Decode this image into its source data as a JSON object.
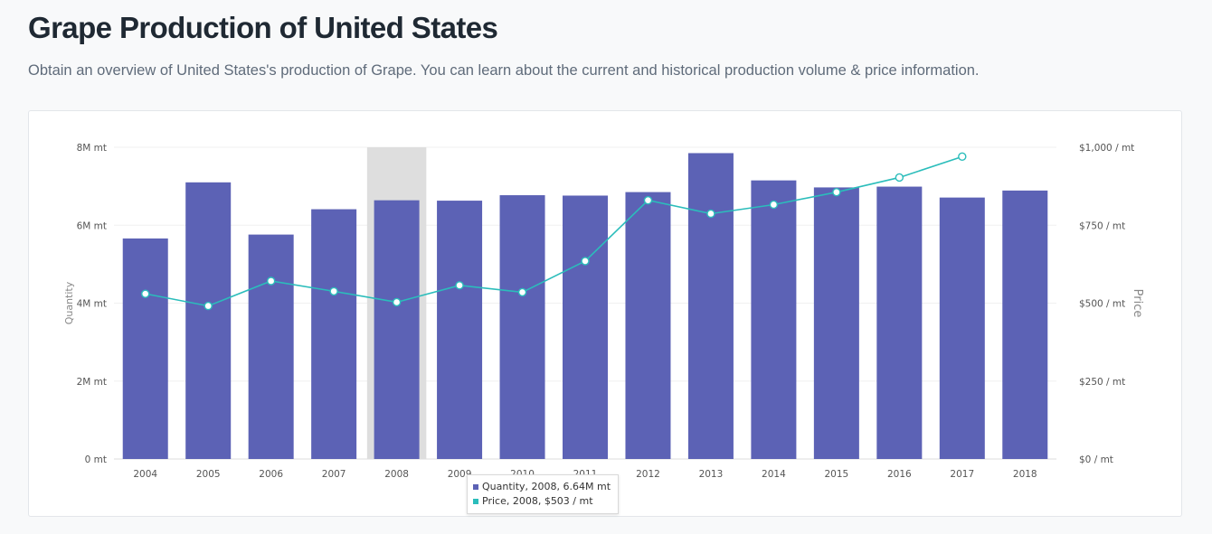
{
  "header": {
    "title": "Grape Production of United States",
    "subtitle": "Obtain an overview of United States's production of Grape. You can learn about the current and historical production volume & price information."
  },
  "colors": {
    "bar": "#5c62b5",
    "line": "#2bbdbb",
    "highlight": "#dedede"
  },
  "chart_data": {
    "type": "bar",
    "categories": [
      "2004",
      "2005",
      "2006",
      "2007",
      "2008",
      "2009",
      "2010",
      "2011",
      "2012",
      "2013",
      "2014",
      "2015",
      "2016",
      "2017",
      "2018"
    ],
    "series": [
      {
        "name": "Quantity",
        "type": "bar",
        "axis": "left",
        "values": [
          5.66,
          7.1,
          5.76,
          6.41,
          6.64,
          6.63,
          6.77,
          6.76,
          6.85,
          7.85,
          7.15,
          6.97,
          6.99,
          6.71,
          6.89
        ]
      },
      {
        "name": "Price",
        "type": "line",
        "axis": "right",
        "values": [
          530,
          491,
          571,
          538,
          503,
          557,
          535,
          635,
          830,
          787,
          816,
          856,
          903,
          970,
          null
        ]
      }
    ],
    "ylabel": "Quantity",
    "y2label": "Price",
    "ylim": [
      0,
      8
    ],
    "y2lim": [
      0,
      1000
    ],
    "yticks": [
      "0 mt",
      "2M mt",
      "4M mt",
      "6M mt",
      "8M mt"
    ],
    "y2ticks": [
      "$0 / mt",
      "$250 / mt",
      "$500 / mt",
      "$750 / mt",
      "$1,000 / mt"
    ],
    "highlight_category": "2008",
    "tooltip": [
      {
        "label": "Quantity, 2008, 6.64M mt",
        "color": "#5c62b5"
      },
      {
        "label": "Price, 2008, $503 / mt",
        "color": "#2bbdbb"
      }
    ]
  }
}
